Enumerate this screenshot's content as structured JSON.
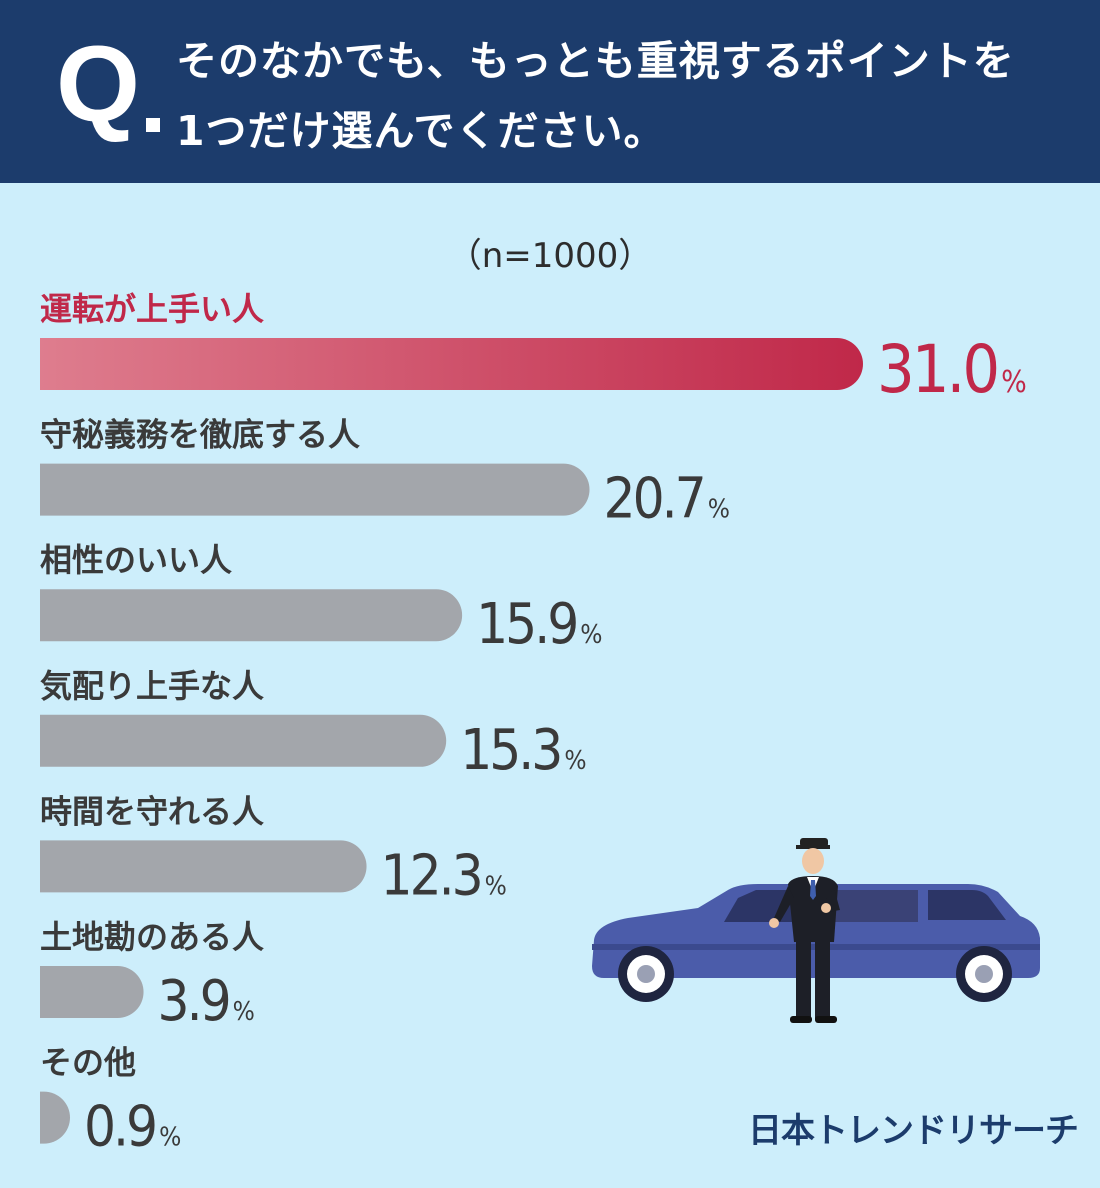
{
  "header": {
    "q_label": "Q",
    "question_line1": "そのなかでも、もっとも重視するポイントを",
    "question_line2": "1つだけ選んでください。"
  },
  "sample_size": "（n=1000）",
  "brand": "日本トレンドリサーチ",
  "colors": {
    "header_bg": "#1c3c6c",
    "page_bg": "#cdeefb",
    "highlight_start": "#de7d8e",
    "highlight_end": "#c02849",
    "highlight_text": "#c02849",
    "bar_gray": "#a3a6ab",
    "text_dark": "#3a3a3a"
  },
  "chart_data": {
    "type": "bar",
    "orientation": "horizontal",
    "title": "そのなかでも、もっとも重視するポイントを1つだけ選んでください。",
    "unit": "%",
    "xlim": [
      0,
      31.0
    ],
    "categories": [
      "運転が上手い人",
      "守秘義務を徹底する人",
      "相性のいい人",
      "気配り上手な人",
      "時間を守れる人",
      "土地勘のある人",
      "その他"
    ],
    "values": [
      31.0,
      20.7,
      15.9,
      15.3,
      12.3,
      3.9,
      0.9
    ],
    "value_labels": [
      "31.0",
      "20.7",
      "15.9",
      "15.3",
      "12.3",
      "3.9",
      "0.9"
    ],
    "highlight_index": 0
  }
}
